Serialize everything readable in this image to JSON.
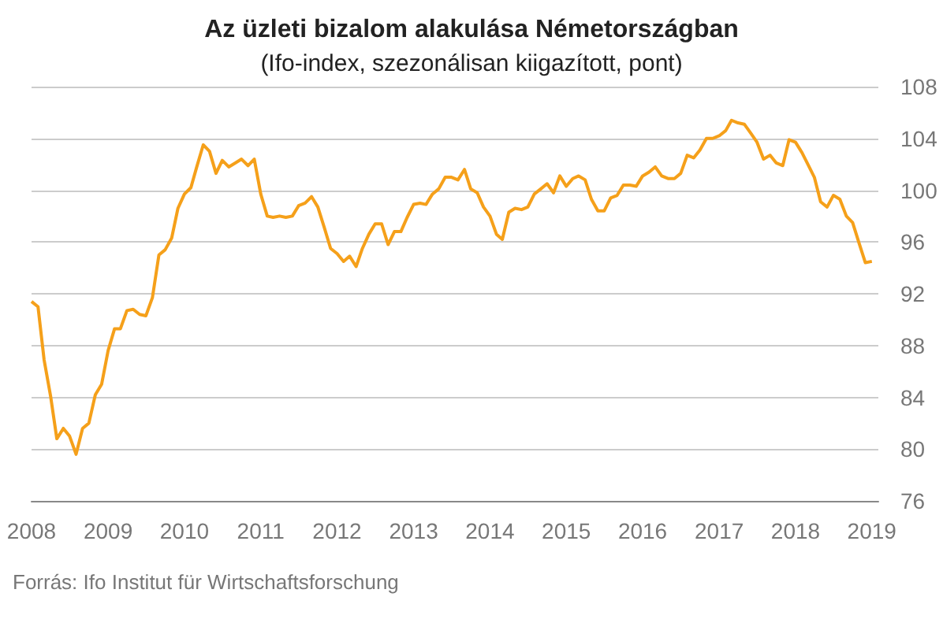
{
  "chart_data": {
    "type": "line",
    "title": "Az üzleti bizalom alakulása Németországban",
    "subtitle": "(Ifo-index, szezonálisan kiigazított, pont)",
    "annotations": [
      "Forrás: Ifo Institut für Wirtschaftsforschung"
    ],
    "x": [
      "2008-01",
      "2008-02",
      "2008-03",
      "2008-04",
      "2008-05",
      "2008-06",
      "2008-07",
      "2008-08",
      "2008-09",
      "2008-10",
      "2008-11",
      "2008-12",
      "2009-01",
      "2009-02",
      "2009-03",
      "2009-04",
      "2009-05",
      "2009-06",
      "2009-07",
      "2009-08",
      "2009-09",
      "2009-10",
      "2009-11",
      "2009-12",
      "2010-01",
      "2010-02",
      "2010-03",
      "2010-04",
      "2010-05",
      "2010-06",
      "2010-07",
      "2010-08",
      "2010-09",
      "2010-10",
      "2010-11",
      "2010-12",
      "2011-01",
      "2011-02",
      "2011-03",
      "2011-04",
      "2011-05",
      "2011-06",
      "2011-07",
      "2011-08",
      "2011-09",
      "2011-10",
      "2011-11",
      "2011-12",
      "2012-01",
      "2012-02",
      "2012-03",
      "2012-04",
      "2012-05",
      "2012-06",
      "2012-07",
      "2012-08",
      "2012-09",
      "2012-10",
      "2012-11",
      "2012-12",
      "2013-01",
      "2013-02",
      "2013-03",
      "2013-04",
      "2013-05",
      "2013-06",
      "2013-07",
      "2013-08",
      "2013-09",
      "2013-10",
      "2013-11",
      "2013-12",
      "2014-01",
      "2014-02",
      "2014-03",
      "2014-04",
      "2014-05",
      "2014-06",
      "2014-07",
      "2014-08",
      "2014-09",
      "2014-10",
      "2014-11",
      "2014-12",
      "2015-01",
      "2015-02",
      "2015-03",
      "2015-04",
      "2015-05",
      "2015-06",
      "2015-07",
      "2015-08",
      "2015-09",
      "2015-10",
      "2015-11",
      "2015-12",
      "2016-01",
      "2016-02",
      "2016-03",
      "2016-04",
      "2016-05",
      "2016-06",
      "2016-07",
      "2016-08",
      "2016-09",
      "2016-10",
      "2016-11",
      "2016-12",
      "2017-01",
      "2017-02",
      "2017-03",
      "2017-04",
      "2017-05",
      "2017-06",
      "2017-07",
      "2017-08",
      "2017-09",
      "2017-10",
      "2017-11",
      "2017-12",
      "2018-01",
      "2018-02",
      "2018-03",
      "2018-04",
      "2018-05",
      "2018-06",
      "2018-07",
      "2018-08",
      "2018-09",
      "2018-10",
      "2018-11",
      "2018-12",
      "2019-01"
    ],
    "series": [
      {
        "color": "#f5a01a",
        "values": [
          91.4,
          91.0,
          86.9,
          84.1,
          80.8,
          81.6,
          81.0,
          79.6,
          81.6,
          82.0,
          84.2,
          85.0,
          87.6,
          89.3,
          89.3,
          90.7,
          90.8,
          90.4,
          90.3,
          91.7,
          95.0,
          95.4,
          96.3,
          98.6,
          99.7,
          100.2,
          101.8,
          103.5,
          103.0,
          101.3,
          102.3,
          101.8,
          102.1,
          102.4,
          101.9,
          102.4,
          99.7,
          98.0,
          97.9,
          98.0,
          97.9,
          98.0,
          98.8,
          99.0,
          99.5,
          98.7,
          97.1,
          95.5,
          95.1,
          94.5,
          94.9,
          94.1,
          95.5,
          96.6,
          97.4,
          97.4,
          95.8,
          96.8,
          96.8,
          97.9,
          98.9,
          99.0,
          98.9,
          99.7,
          100.1,
          101.0,
          101.0,
          100.8,
          101.6,
          100.1,
          99.8,
          98.7,
          98.0,
          96.6,
          96.2,
          98.3,
          98.6,
          98.5,
          98.7,
          99.7,
          100.1,
          100.5,
          99.8,
          101.1,
          100.3,
          100.9,
          101.1,
          100.8,
          99.3,
          98.4,
          98.4,
          99.4,
          99.6,
          100.4,
          100.4,
          100.3,
          101.1,
          101.4,
          101.8,
          101.1,
          100.9,
          100.9,
          101.3,
          102.7,
          102.5,
          103.1,
          104.0,
          104.0,
          104.2,
          104.6,
          105.4,
          105.2,
          105.1,
          104.4,
          103.7,
          102.4,
          102.7,
          102.1,
          101.9,
          103.9,
          103.7,
          102.9,
          102.0,
          101.0,
          99.1,
          98.7,
          99.6,
          99.3,
          98.0,
          97.5,
          95.9,
          94.4,
          94.5
        ]
      }
    ],
    "xlim": [
      "2008-01",
      "2019-02"
    ],
    "xticks": [
      "2008",
      "2009",
      "2010",
      "2011",
      "2012",
      "2013",
      "2014",
      "2015",
      "2016",
      "2017",
      "2018",
      "2019"
    ],
    "ylim": [
      76,
      108
    ],
    "yticks": [
      76,
      80,
      84,
      88,
      92,
      96,
      100,
      104,
      108
    ],
    "grid": "y",
    "marker": "none",
    "line_style": "solid"
  }
}
